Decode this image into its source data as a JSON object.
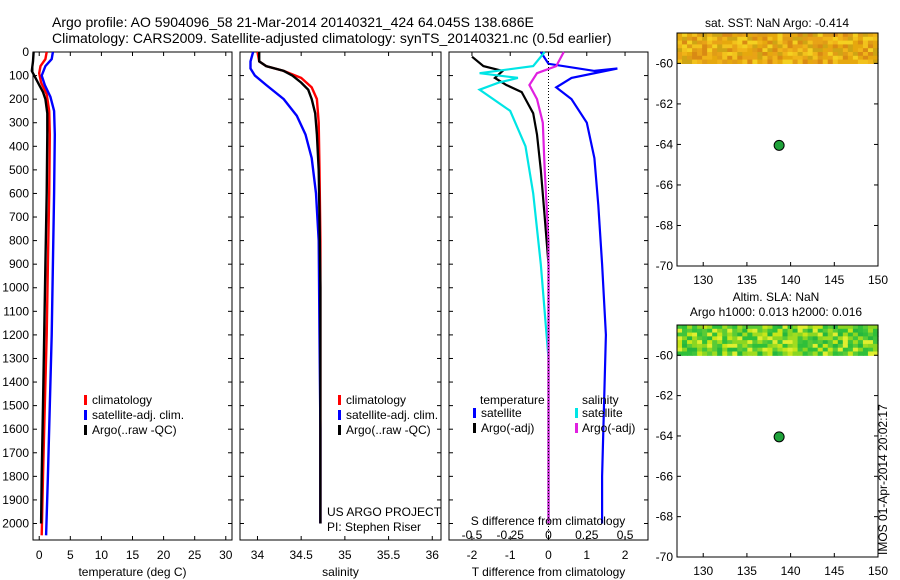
{
  "header": {
    "line1": "Argo profile: AO 5904096_58 21-Mar-2014 20140321_424 64.045S 138.686E",
    "line2": "Climatology: CARS2009. Satellite-adjusted climatology: synTS_20140321.nc (0.5d earlier)"
  },
  "footer": {
    "project": "US ARGO PROJECT",
    "pi": "PI: Stephen Riser",
    "imos": "IMOS 01-Apr-2014 20:02:17"
  },
  "colors": {
    "climatology": "#ff0000",
    "satellite": "#0000ff",
    "argo": "#000000",
    "cyan": "#00e5e5",
    "magenta": "#e020e0"
  },
  "chart_data": [
    {
      "type": "line",
      "xlabel": "temperature (deg C)",
      "ylabel": "",
      "xlim": [
        -1,
        31
      ],
      "ylim": [
        2070,
        0
      ],
      "xticks": [
        0,
        5,
        10,
        15,
        20,
        25,
        30
      ],
      "yticks": [
        0,
        100,
        200,
        300,
        400,
        500,
        600,
        700,
        800,
        900,
        1000,
        1100,
        1200,
        1300,
        1400,
        1500,
        1600,
        1700,
        1800,
        1900,
        2000
      ],
      "legend": [
        "climatology",
        "satellite-adj. clim.",
        "Argo(..raw -QC)"
      ],
      "series": [
        {
          "name": "climatology",
          "color": "#ff0000",
          "points": [
            [
              1.2,
              0
            ],
            [
              1.0,
              30
            ],
            [
              0.2,
              60
            ],
            [
              0.0,
              90
            ],
            [
              0.3,
              130
            ],
            [
              1.2,
              180
            ],
            [
              1.6,
              250
            ],
            [
              1.7,
              350
            ],
            [
              1.6,
              600
            ],
            [
              1.4,
              900
            ],
            [
              1.2,
              1200
            ],
            [
              0.9,
              1500
            ],
            [
              0.6,
              1800
            ],
            [
              0.4,
              2050
            ]
          ]
        },
        {
          "name": "satellite-adj. clim.",
          "color": "#0000ff",
          "points": [
            [
              2.2,
              0
            ],
            [
              2.0,
              30
            ],
            [
              1.0,
              60
            ],
            [
              0.4,
              100
            ],
            [
              0.9,
              140
            ],
            [
              1.8,
              190
            ],
            [
              2.4,
              250
            ],
            [
              2.5,
              350
            ],
            [
              2.4,
              600
            ],
            [
              2.2,
              900
            ],
            [
              2.0,
              1200
            ],
            [
              1.7,
              1500
            ],
            [
              1.4,
              1800
            ],
            [
              1.1,
              2050
            ]
          ]
        },
        {
          "name": "Argo(..raw -QC)",
          "color": "#000000",
          "points": [
            [
              -0.9,
              0
            ],
            [
              -1.0,
              40
            ],
            [
              -1.2,
              80
            ],
            [
              -0.6,
              110
            ],
            [
              0.0,
              140
            ],
            [
              0.6,
              170
            ],
            [
              1.0,
              200
            ],
            [
              1.3,
              260
            ],
            [
              1.3,
              350
            ],
            [
              1.2,
              600
            ],
            [
              1.0,
              900
            ],
            [
              0.8,
              1200
            ],
            [
              0.6,
              1500
            ],
            [
              0.4,
              1800
            ],
            [
              0.3,
              2000
            ]
          ]
        }
      ]
    },
    {
      "type": "line",
      "xlabel": "salinity",
      "xlim": [
        33.8,
        36.1
      ],
      "ylim": [
        2070,
        0
      ],
      "xticks": [
        34,
        34.5,
        35,
        35.5,
        36
      ],
      "legend": [
        "climatology",
        "satellite-adj. clim.",
        "Argo(..raw -QC)"
      ],
      "series": [
        {
          "name": "climatology",
          "color": "#ff0000",
          "points": [
            [
              34.0,
              0
            ],
            [
              34.02,
              40
            ],
            [
              34.1,
              60
            ],
            [
              34.3,
              80
            ],
            [
              34.5,
              110
            ],
            [
              34.62,
              150
            ],
            [
              34.68,
              200
            ],
            [
              34.7,
              300
            ],
            [
              34.71,
              500
            ],
            [
              34.72,
              800
            ],
            [
              34.72,
              1200
            ],
            [
              34.72,
              1600
            ],
            [
              34.72,
              2000
            ]
          ]
        },
        {
          "name": "satellite-adj. clim.",
          "color": "#0000ff",
          "points": [
            [
              33.95,
              0
            ],
            [
              33.92,
              40
            ],
            [
              33.92,
              70
            ],
            [
              33.97,
              100
            ],
            [
              34.1,
              140
            ],
            [
              34.3,
              200
            ],
            [
              34.45,
              270
            ],
            [
              34.55,
              350
            ],
            [
              34.62,
              450
            ],
            [
              34.67,
              600
            ],
            [
              34.7,
              800
            ],
            [
              34.71,
              1200
            ],
            [
              34.72,
              1600
            ],
            [
              34.72,
              2000
            ]
          ]
        },
        {
          "name": "Argo(..raw -QC)",
          "color": "#000000",
          "points": [
            [
              34.02,
              0
            ],
            [
              34.02,
              40
            ],
            [
              34.1,
              60
            ],
            [
              34.3,
              80
            ],
            [
              34.4,
              100
            ],
            [
              34.5,
              130
            ],
            [
              34.58,
              160
            ],
            [
              34.62,
              200
            ],
            [
              34.66,
              260
            ],
            [
              34.68,
              350
            ],
            [
              34.7,
              500
            ],
            [
              34.71,
              700
            ],
            [
              34.72,
              1000
            ],
            [
              34.72,
              1400
            ],
            [
              34.72,
              1800
            ],
            [
              34.72,
              2000
            ]
          ]
        }
      ]
    },
    {
      "type": "line",
      "xlabel": "T difference from climatology",
      "title2": "S difference from climatology",
      "xlim": [
        -2.6,
        2.6
      ],
      "ylim": [
        2070,
        0
      ],
      "xticks": [
        -2,
        -1,
        0,
        1,
        2
      ],
      "sticks": [
        "-0.5",
        "-0.25",
        "0",
        "0.25",
        "0.5"
      ],
      "sticks_vals": [
        -2,
        -1,
        0,
        1,
        2
      ],
      "legend_left": {
        "head": "temperature",
        "a": "satellite",
        "b": "Argo(-adj)"
      },
      "legend_right": {
        "head": "salinity",
        "a": "satellite",
        "b": "Argo(-adj)"
      },
      "series": [
        {
          "name": "T satellite",
          "color": "#0000ff",
          "points": [
            [
              -0.2,
              0
            ],
            [
              0.0,
              50
            ],
            [
              1.2,
              80
            ],
            [
              1.8,
              70
            ],
            [
              0.6,
              110
            ],
            [
              0.2,
              150
            ],
            [
              0.6,
              200
            ],
            [
              1.0,
              300
            ],
            [
              1.2,
              450
            ],
            [
              1.3,
              650
            ],
            [
              1.4,
              900
            ],
            [
              1.5,
              1200
            ],
            [
              1.45,
              1500
            ],
            [
              1.4,
              1800
            ],
            [
              1.4,
              2000
            ]
          ]
        },
        {
          "name": "T Argo(-adj)",
          "color": "#000000",
          "points": [
            [
              -2.0,
              20
            ],
            [
              -1.7,
              60
            ],
            [
              -1.2,
              80
            ],
            [
              -1.4,
              110
            ],
            [
              -1.1,
              140
            ],
            [
              -0.7,
              170
            ],
            [
              -0.6,
              200
            ],
            [
              -0.4,
              260
            ],
            [
              -0.3,
              350
            ],
            [
              -0.2,
              500
            ],
            [
              -0.1,
              700
            ],
            [
              0.0,
              900
            ],
            [
              0.0,
              1200
            ],
            [
              0.0,
              1600
            ],
            [
              0.0,
              2000
            ]
          ]
        },
        {
          "name": "S satellite",
          "color": "#00e5e5",
          "points": [
            [
              -0.1,
              0
            ],
            [
              -0.4,
              60
            ],
            [
              -1.8,
              90
            ],
            [
              -0.8,
              110
            ],
            [
              -1.3,
              130
            ],
            [
              -1.8,
              160
            ],
            [
              -1.0,
              250
            ],
            [
              -0.6,
              400
            ],
            [
              -0.4,
              600
            ],
            [
              -0.2,
              900
            ],
            [
              0.0,
              1300
            ],
            [
              0.0,
              1700
            ],
            [
              0.0,
              2000
            ]
          ]
        },
        {
          "name": "S Argo(-adj)",
          "color": "#e020e0",
          "points": [
            [
              0.4,
              0
            ],
            [
              0.2,
              60
            ],
            [
              -0.3,
              90
            ],
            [
              -0.5,
              140
            ],
            [
              -0.3,
              200
            ],
            [
              -0.15,
              300
            ],
            [
              -0.1,
              500
            ],
            [
              0.0,
              800
            ],
            [
              0.0,
              1200
            ],
            [
              0.0,
              1600
            ],
            [
              0.0,
              2000
            ]
          ]
        }
      ]
    },
    {
      "type": "heatmap",
      "title": "sat. SST: NaN Argo: -0.414",
      "xlim": [
        127,
        150
      ],
      "ylim": [
        -70,
        -58.5
      ],
      "xticks": [
        130,
        135,
        140,
        145,
        150
      ],
      "yticks": [
        -60,
        -62,
        -64,
        -66,
        -68,
        -70
      ],
      "marker": {
        "lon": 138.686,
        "lat": -64.045
      }
    },
    {
      "type": "heatmap",
      "title": "Altim. SLA: NaN",
      "subtitle": "Argo h1000: 0.013 h2000: 0.016",
      "xlim": [
        127,
        150
      ],
      "ylim": [
        -70,
        -58.5
      ],
      "xticks": [
        130,
        135,
        140,
        145,
        150
      ],
      "yticks": [
        -60,
        -62,
        -64,
        -66,
        -68,
        -70
      ],
      "marker": {
        "lon": 138.686,
        "lat": -64.045
      }
    }
  ]
}
